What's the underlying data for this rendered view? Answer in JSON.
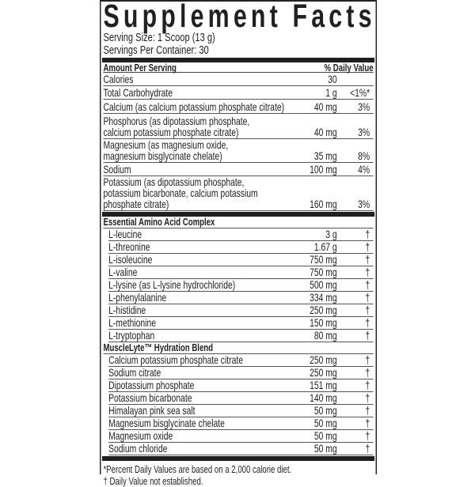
{
  "title": "Supplement Facts",
  "serving_size": "Serving Size: 1 Scoop (13 g)",
  "servings_per_container": "Servings Per Container: 30",
  "header": {
    "amount": "Amount Per Serving",
    "dv": "% Daily Value"
  },
  "main_rows": [
    {
      "name": "Calories",
      "amount": "30",
      "dv": ""
    },
    {
      "name": "Total Carbohydrate",
      "amount": "1 g",
      "dv": "<1%*"
    },
    {
      "name": "Calcium (as calcium potassium phosphate citrate)",
      "amount": "40 mg",
      "dv": "3%"
    },
    {
      "name": "Phosphorus (as dipotassium phosphate,\ncalcium potassium phosphate citrate)",
      "amount": "40 mg",
      "dv": "3%"
    },
    {
      "name": "Magnesium (as magnesium oxide,\nmagnesium bisglycinate chelate)",
      "amount": "35 mg",
      "dv": "8%"
    },
    {
      "name": "Sodium",
      "amount": "100 mg",
      "dv": "4%"
    },
    {
      "name": "Potassium (as dipotassium phosphate,\npotassium bicarbonate, calcium potassium\nphosphate citrate)",
      "amount": "160 mg",
      "dv": "3%"
    }
  ],
  "amino": {
    "title": "Essential Amino Acid Complex",
    "rows": [
      {
        "name": "L-leucine",
        "amount": "3 g",
        "dv": "†"
      },
      {
        "name": "L-threonine",
        "amount": "1.67 g",
        "dv": "†"
      },
      {
        "name": "L-isoleucine",
        "amount": "750 mg",
        "dv": "†"
      },
      {
        "name": "L-valine",
        "amount": "750 mg",
        "dv": "†"
      },
      {
        "name": "L-lysine (as L-lysine hydrochloride)",
        "amount": "500 mg",
        "dv": "†"
      },
      {
        "name": "L-phenylalanine",
        "amount": "334 mg",
        "dv": "†"
      },
      {
        "name": "L-histidine",
        "amount": "250 mg",
        "dv": "†"
      },
      {
        "name": "L-methionine",
        "amount": "150 mg",
        "dv": "†"
      },
      {
        "name": "L-tryptophan",
        "amount": "80 mg",
        "dv": "†"
      }
    ]
  },
  "blend": {
    "title": "MuscleLyte™ Hydration Blend",
    "rows": [
      {
        "name": "Calcium potassium phosphate citrate",
        "amount": "250 mg",
        "dv": "†"
      },
      {
        "name": "Sodium citrate",
        "amount": "250 mg",
        "dv": "†"
      },
      {
        "name": "Dipotassium phosphate",
        "amount": "151 mg",
        "dv": "†"
      },
      {
        "name": "Potassium bicarbonate",
        "amount": "140 mg",
        "dv": "†"
      },
      {
        "name": "Himalayan pink sea salt",
        "amount": "50 mg",
        "dv": "†"
      },
      {
        "name": "Magnesium bisglycinate chelate",
        "amount": "50 mg",
        "dv": "†"
      },
      {
        "name": "Magnesium oxide",
        "amount": "50 mg",
        "dv": "†"
      },
      {
        "name": "Sodium chloride",
        "amount": "50 mg",
        "dv": "†"
      }
    ]
  },
  "footnotes": [
    "*Percent Daily Values are based on a 2,000 calorie diet.",
    "† Daily Value not established."
  ]
}
